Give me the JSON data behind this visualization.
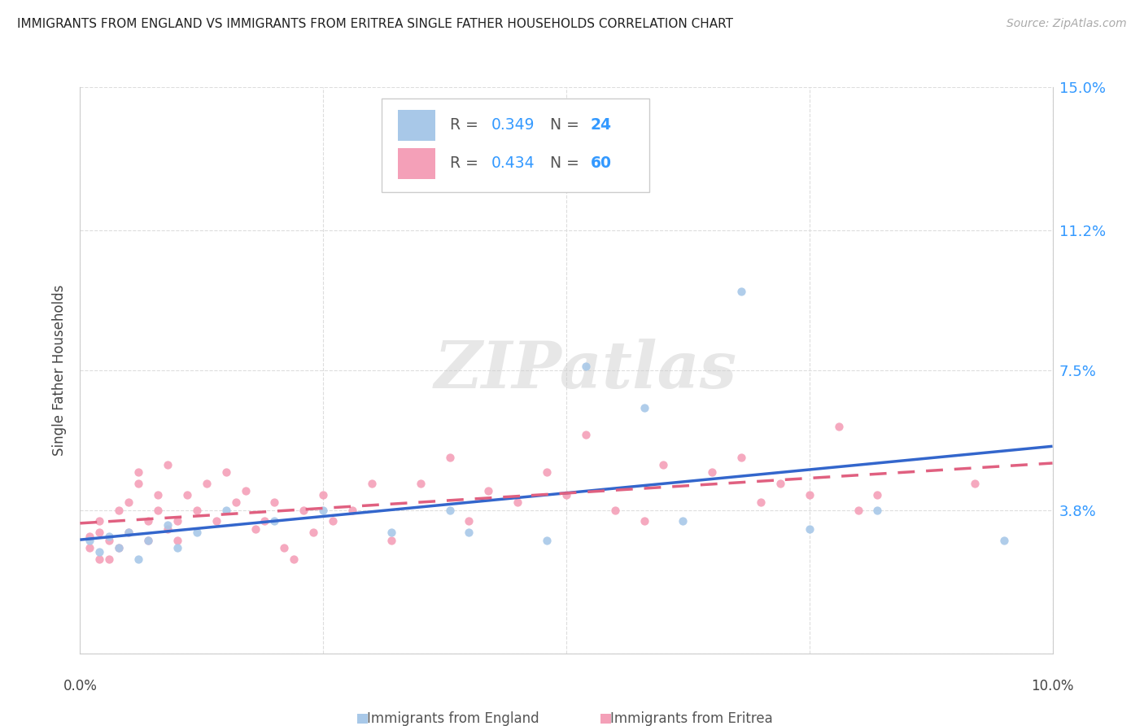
{
  "title": "IMMIGRANTS FROM ENGLAND VS IMMIGRANTS FROM ERITREA SINGLE FATHER HOUSEHOLDS CORRELATION CHART",
  "source": "Source: ZipAtlas.com",
  "ylabel_left": "Single Father Households",
  "xlim": [
    0.0,
    0.1
  ],
  "ylim": [
    0.0,
    0.15
  ],
  "ytick_vals": [
    0.0,
    0.038,
    0.075,
    0.112,
    0.15
  ],
  "ytick_labels": [
    "",
    "3.8%",
    "7.5%",
    "11.2%",
    "15.0%"
  ],
  "xtick_vals": [
    0.0,
    0.025,
    0.05,
    0.075,
    0.1
  ],
  "england_color": "#a8c8e8",
  "eritrea_color": "#f4a0b8",
  "england_line_color": "#3366cc",
  "eritrea_line_color": "#e06080",
  "england_R": 0.349,
  "england_N": 24,
  "eritrea_R": 0.434,
  "eritrea_N": 60,
  "england_x": [
    0.001,
    0.002,
    0.003,
    0.004,
    0.005,
    0.006,
    0.007,
    0.009,
    0.01,
    0.012,
    0.015,
    0.02,
    0.025,
    0.032,
    0.038,
    0.04,
    0.048,
    0.052,
    0.058,
    0.062,
    0.068,
    0.075,
    0.082,
    0.095
  ],
  "england_y": [
    0.03,
    0.027,
    0.031,
    0.028,
    0.032,
    0.025,
    0.03,
    0.034,
    0.028,
    0.032,
    0.038,
    0.035,
    0.038,
    0.032,
    0.038,
    0.032,
    0.03,
    0.076,
    0.065,
    0.035,
    0.096,
    0.033,
    0.038,
    0.03
  ],
  "eritrea_x": [
    0.001,
    0.001,
    0.002,
    0.002,
    0.002,
    0.003,
    0.003,
    0.004,
    0.004,
    0.005,
    0.005,
    0.006,
    0.006,
    0.007,
    0.007,
    0.008,
    0.008,
    0.009,
    0.009,
    0.01,
    0.01,
    0.011,
    0.012,
    0.013,
    0.014,
    0.015,
    0.016,
    0.017,
    0.018,
    0.019,
    0.02,
    0.021,
    0.022,
    0.023,
    0.024,
    0.025,
    0.026,
    0.028,
    0.03,
    0.032,
    0.035,
    0.038,
    0.04,
    0.042,
    0.045,
    0.048,
    0.05,
    0.052,
    0.055,
    0.058,
    0.06,
    0.065,
    0.068,
    0.07,
    0.072,
    0.075,
    0.078,
    0.08,
    0.082,
    0.092
  ],
  "eritrea_y": [
    0.028,
    0.031,
    0.035,
    0.025,
    0.032,
    0.03,
    0.025,
    0.038,
    0.028,
    0.04,
    0.032,
    0.045,
    0.048,
    0.035,
    0.03,
    0.042,
    0.038,
    0.033,
    0.05,
    0.035,
    0.03,
    0.042,
    0.038,
    0.045,
    0.035,
    0.048,
    0.04,
    0.043,
    0.033,
    0.035,
    0.04,
    0.028,
    0.025,
    0.038,
    0.032,
    0.042,
    0.035,
    0.038,
    0.045,
    0.03,
    0.045,
    0.052,
    0.035,
    0.043,
    0.04,
    0.048,
    0.042,
    0.058,
    0.038,
    0.035,
    0.05,
    0.048,
    0.052,
    0.04,
    0.045,
    0.042,
    0.06,
    0.038,
    0.042,
    0.045
  ],
  "background_color": "#ffffff",
  "grid_color": "#dddddd",
  "watermark_text": "ZIPatlas",
  "watermark_color": "#d0d0d0",
  "legend_R_color": "#3399ff",
  "legend_N_color": "#3399ff"
}
